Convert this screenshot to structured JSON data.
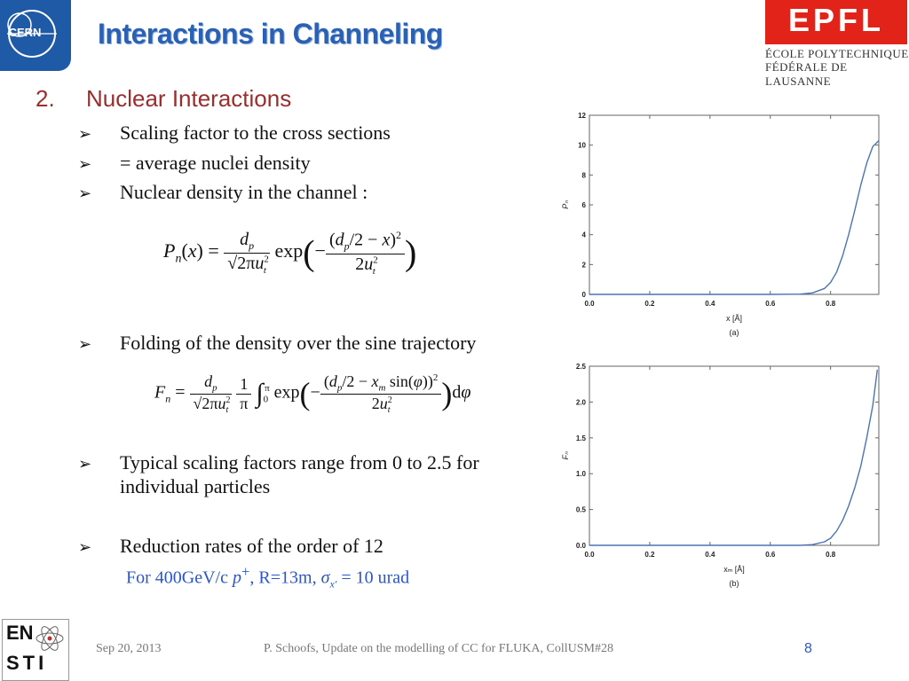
{
  "header": {
    "title": "Interactions in Channeling",
    "cern_label": "CERN",
    "epfl_label": "EPFL",
    "epfl_line1": "ÉCOLE POLYTECHNIQUE",
    "epfl_line2": "FÉDÉRALE DE LAUSANNE"
  },
  "section": {
    "number": "2.",
    "title": "Nuclear Interactions"
  },
  "bullets": [
    "Scaling factor to the cross sections",
    "= average nuclei density",
    "Nuclear density in the channel :",
    "Folding of the density over the sine trajectory",
    "Typical scaling factors range from 0 to 2.5 for",
    "Reduction rates of the order of 12"
  ],
  "bullet_continuation": "individual particles",
  "subnote": {
    "prefix": "For 400GeV/c ",
    "p": "p",
    "plus": "+",
    "mid": ", R=13m, ",
    "sigma": "σ",
    "sigma_sub": "x'",
    "suffix": " = 10 urad"
  },
  "footer": {
    "date": "Sep 20, 2013",
    "author": "P. Schoofs, Update on the modelling of CC for FLUKA, CollUSM#28",
    "page": "8",
    "logo_top": "EN",
    "logo_bottom": "STI"
  },
  "chart_data": [
    {
      "type": "line",
      "panel_label": "(a)",
      "xlabel": "x [Å]",
      "ylabel": "Pₙ",
      "xlim": [
        0,
        0.96
      ],
      "ylim": [
        0,
        12
      ],
      "x_ticks": [
        "0.0",
        "0.2",
        "0.4",
        "0.6",
        "0.8"
      ],
      "y_ticks": [
        "0",
        "2",
        "4",
        "6",
        "8",
        "10",
        "12"
      ],
      "x": [
        0.0,
        0.6,
        0.7,
        0.74,
        0.78,
        0.8,
        0.82,
        0.84,
        0.86,
        0.88,
        0.9,
        0.92,
        0.94,
        0.96
      ],
      "values": [
        0.0,
        0.0,
        0.02,
        0.1,
        0.4,
        0.8,
        1.5,
        2.6,
        4.0,
        5.6,
        7.3,
        8.8,
        9.9,
        10.3
      ],
      "line_color": "#4a74b4"
    },
    {
      "type": "line",
      "panel_label": "(b)",
      "xlabel": "xₘ [Å]",
      "ylabel": "Fₙ",
      "xlim": [
        0,
        0.96
      ],
      "ylim": [
        0,
        2.5
      ],
      "x_ticks": [
        "0.0",
        "0.2",
        "0.4",
        "0.6",
        "0.8"
      ],
      "y_ticks": [
        "0.0",
        "0.5",
        "1.0",
        "1.5",
        "2.0",
        "2.5"
      ],
      "x": [
        0.0,
        0.6,
        0.7,
        0.74,
        0.78,
        0.8,
        0.82,
        0.84,
        0.86,
        0.88,
        0.9,
        0.92,
        0.94,
        0.955
      ],
      "values": [
        0.0,
        0.0,
        0.0,
        0.01,
        0.05,
        0.1,
        0.2,
        0.35,
        0.55,
        0.8,
        1.1,
        1.5,
        1.95,
        2.45
      ],
      "line_color": "#4a74b4"
    }
  ]
}
